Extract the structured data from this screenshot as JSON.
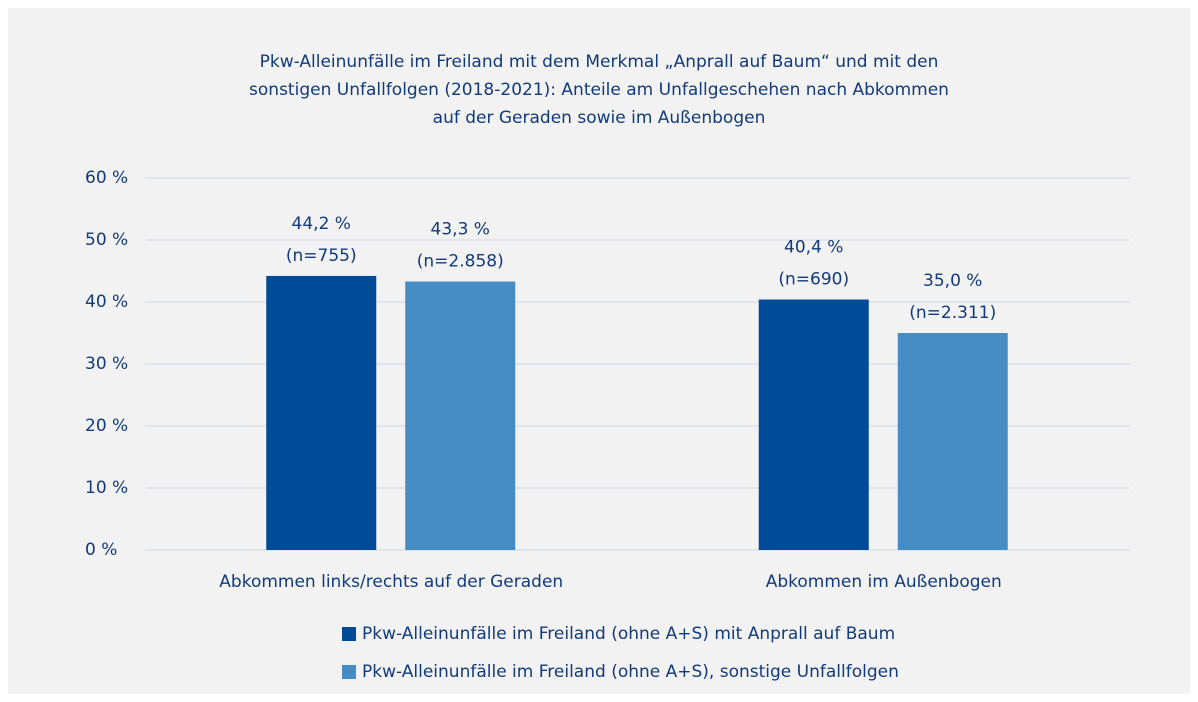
{
  "chart_data": {
    "type": "bar",
    "title": [
      "Pkw-Alleinunfälle im Freiland mit dem Merkmal „Anprall auf Baum“ und mit den",
      "sonstigen Unfallfolgen (2018-2021): Anteile am Unfallgeschehen nach Abkommen",
      "auf der Geraden sowie im Außenbogen"
    ],
    "categories": [
      "Abkommen links/rechts auf der Geraden",
      "Abkommen im Außenbogen"
    ],
    "series": [
      {
        "name": "Pkw-Alleinunfälle im Freiland (ohne A+S) mit Anprall auf Baum",
        "color": "#004a98",
        "values": [
          44.2,
          40.4
        ],
        "value_labels": [
          "44,2 %",
          "40,4 %"
        ],
        "n_labels": [
          "(n=755)",
          "(n=690)"
        ]
      },
      {
        "name": "Pkw-Alleinunfälle im Freiland (ohne A+S), sonstige Unfallfolgen",
        "color": "#468dc6",
        "values": [
          43.3,
          35.0
        ],
        "value_labels": [
          "43,3 %",
          "35,0 %"
        ],
        "n_labels": [
          "(n=2.858)",
          "(n=2.311)"
        ]
      }
    ],
    "ylim": [
      0,
      60
    ],
    "yticks": [
      {
        "value": 0,
        "label": "0 %"
      },
      {
        "value": 10,
        "label": "10 %"
      },
      {
        "value": 20,
        "label": "20 %"
      },
      {
        "value": 30,
        "label": "30 %"
      },
      {
        "value": 40,
        "label": "40 %"
      },
      {
        "value": 50,
        "label": "50 %"
      },
      {
        "value": 60,
        "label": "60 %"
      }
    ],
    "grid": true,
    "legend": "bottom"
  }
}
